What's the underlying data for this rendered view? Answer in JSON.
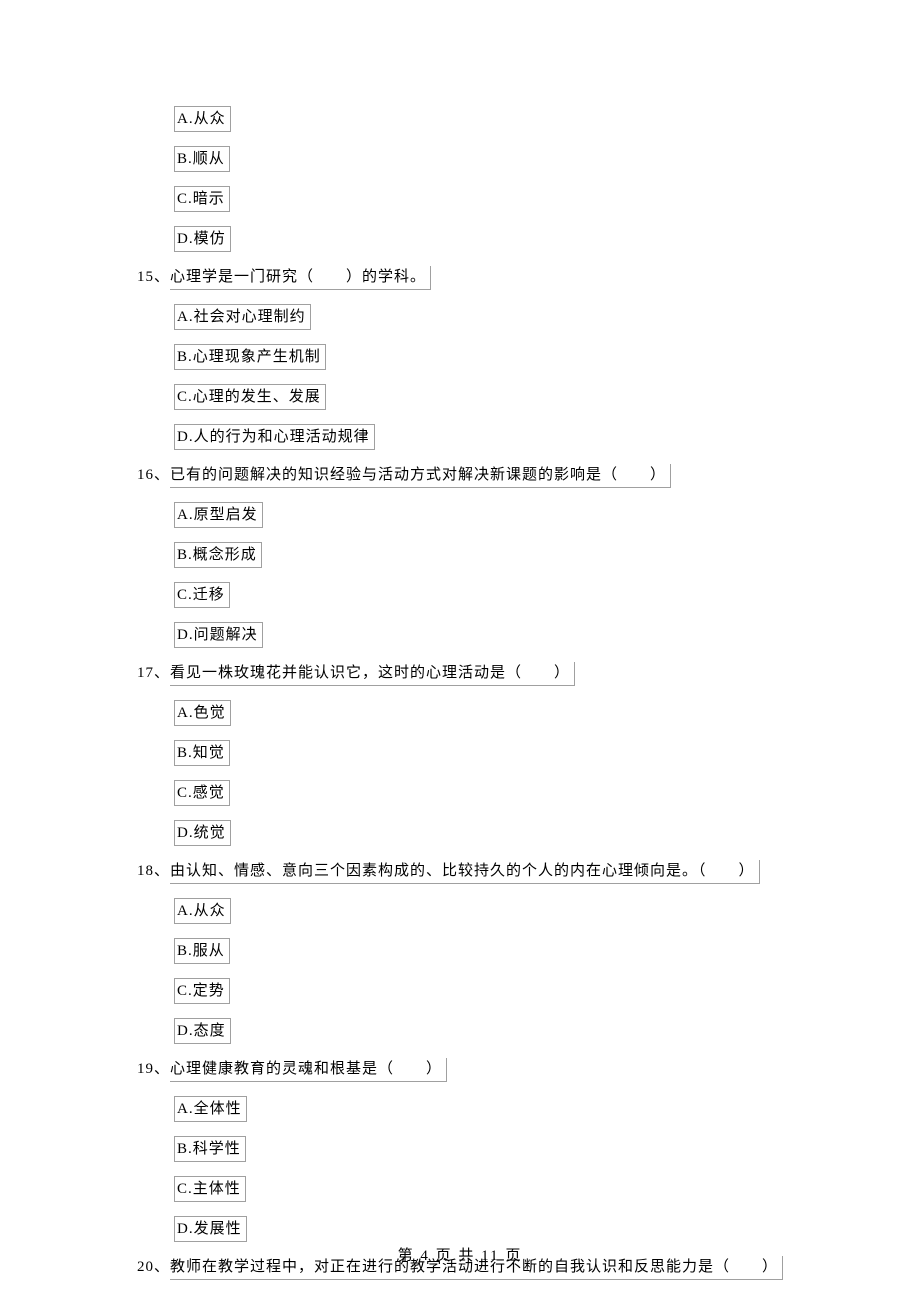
{
  "q14_options": {
    "a": "A.从众",
    "b": "B.顺从",
    "c": "C.暗示",
    "d": "D.模仿"
  },
  "q15": {
    "num": "15、",
    "text": "心理学是一门研究（　　）的学科。",
    "a": "A.社会对心理制约",
    "b": "B.心理现象产生机制",
    "c": "C.心理的发生、发展",
    "d": "D.人的行为和心理活动规律"
  },
  "q16": {
    "num": "16、",
    "text": "已有的问题解决的知识经验与活动方式对解决新课题的影响是（　　）",
    "a": "A.原型启发",
    "b": "B.概念形成",
    "c": "C.迁移",
    "d": "D.问题解决"
  },
  "q17": {
    "num": "17、",
    "text": "看见一株玫瑰花并能认识它，这时的心理活动是（　　）",
    "a": "A.色觉",
    "b": "B.知觉",
    "c": "C.感觉",
    "d": "D.统觉"
  },
  "q18": {
    "num": "18、",
    "text": "由认知、情感、意向三个因素构成的、比较持久的个人的内在心理倾向是。（　　）",
    "a": "A.从众",
    "b": "B.服从",
    "c": "C.定势",
    "d": "D.态度"
  },
  "q19": {
    "num": "19、",
    "text": "心理健康教育的灵魂和根基是（　　）",
    "a": "A.全体性",
    "b": "B.科学性",
    "c": "C.主体性",
    "d": "D.发展性"
  },
  "q20": {
    "num": "20、",
    "text": "教师在教学过程中，对正在进行的教学活动进行不断的自我认识和反思能力是（　　）"
  },
  "footer": "第 4 页 共 11 页"
}
